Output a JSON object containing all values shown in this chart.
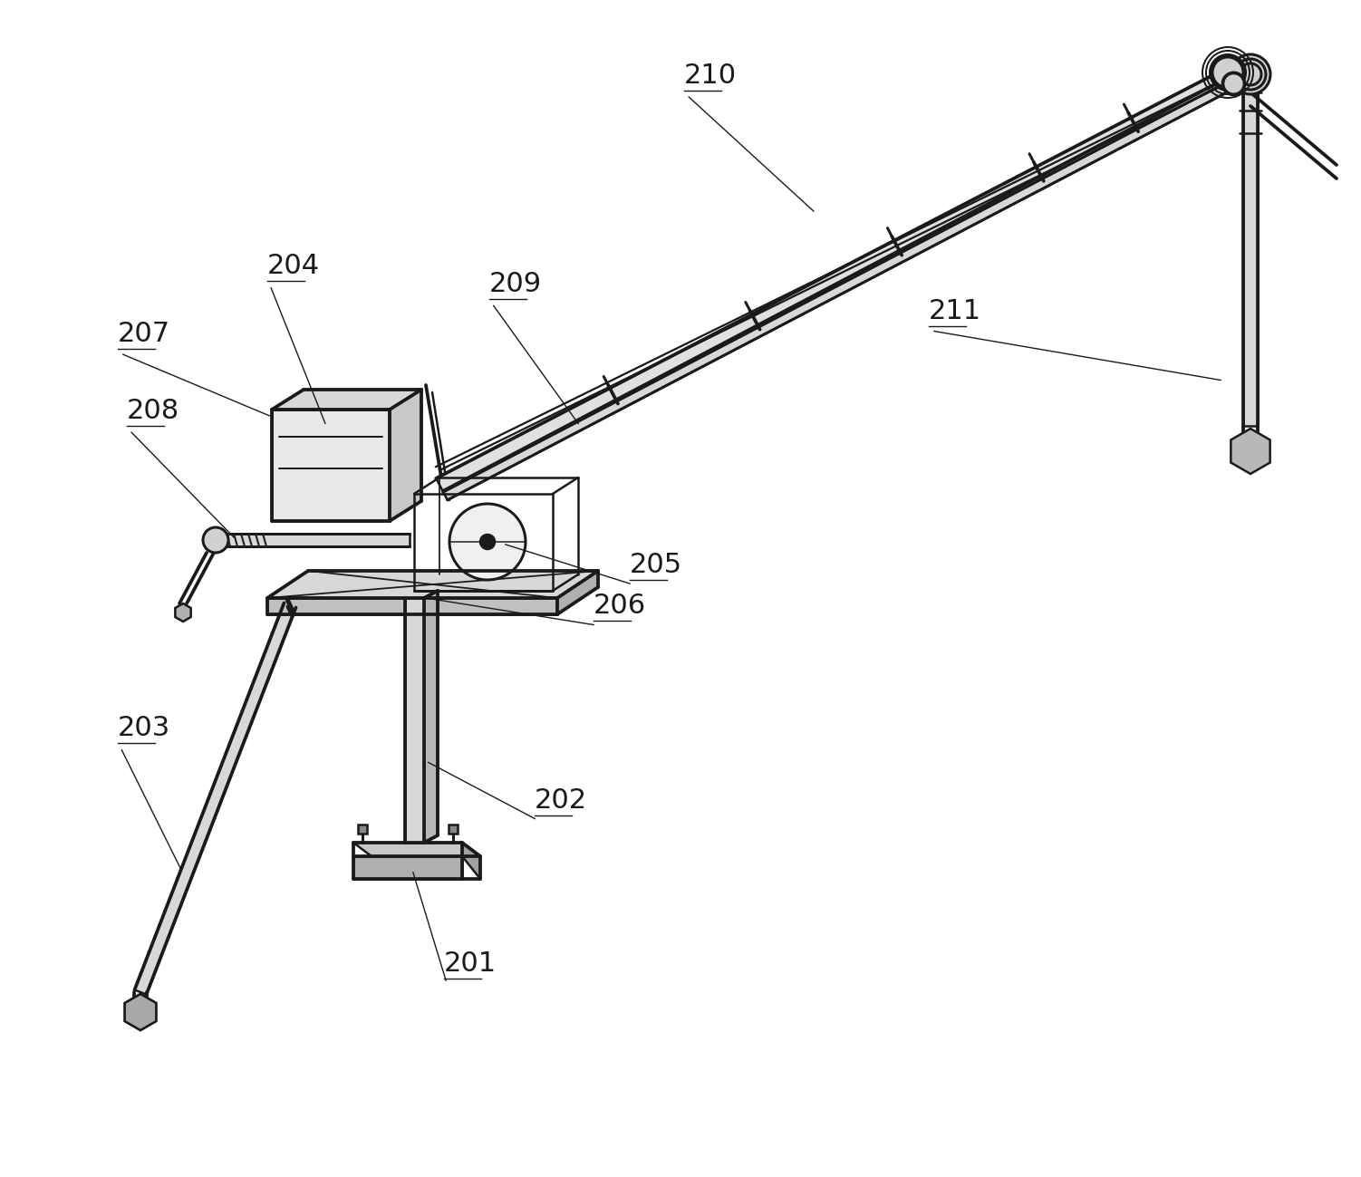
{
  "bg_color": "#ffffff",
  "line_color": "#1a1a1a",
  "figsize": [
    15.02,
    12.99
  ],
  "dpi": 100,
  "labels": [
    [
      "201",
      490,
      1080,
      455,
      960,
      "left"
    ],
    [
      "202",
      590,
      900,
      470,
      840,
      "left"
    ],
    [
      "203",
      130,
      820,
      200,
      960,
      "left"
    ],
    [
      "204",
      295,
      310,
      360,
      470,
      "left"
    ],
    [
      "205",
      695,
      640,
      555,
      600,
      "left"
    ],
    [
      "206",
      655,
      685,
      470,
      660,
      "left"
    ],
    [
      "207",
      130,
      385,
      300,
      460,
      "left"
    ],
    [
      "208",
      140,
      470,
      260,
      595,
      "left"
    ],
    [
      "209",
      540,
      330,
      640,
      470,
      "left"
    ],
    [
      "210",
      755,
      100,
      900,
      235,
      "left"
    ],
    [
      "211",
      1025,
      360,
      1350,
      420,
      "left"
    ]
  ]
}
